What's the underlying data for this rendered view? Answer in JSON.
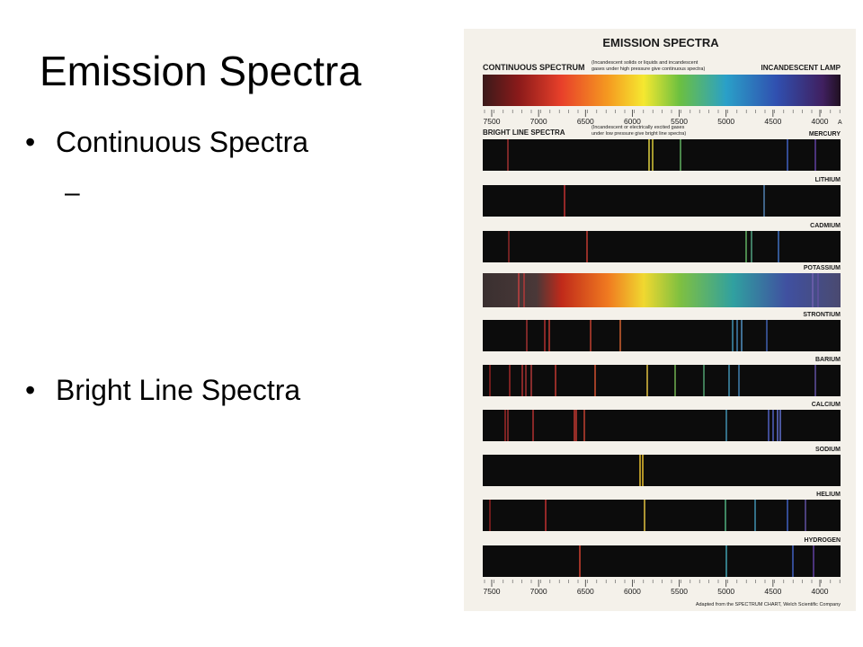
{
  "slide": {
    "title": "Emission Spectra",
    "bullets": [
      {
        "text": "Continuous Spectra",
        "sub": [
          "–"
        ]
      },
      {
        "text": "Bright Line Spectra",
        "sub": []
      }
    ]
  },
  "figure": {
    "title": "EMISSION SPECTRA",
    "continuous": {
      "label": "CONTINUOUS SPECTRUM",
      "note": [
        "(Incandescent solids or liquids and incandescent",
        "gases under high pressure give continuous spectra)"
      ],
      "source": "INCANDESCENT LAMP"
    },
    "bright": {
      "label": "BRIGHT LINE SPECTRA",
      "note": [
        "(Incandescent or electrically excited gases",
        "under low pressure give bright line spectra)"
      ]
    },
    "scale": {
      "ticks": [
        7500,
        7000,
        6500,
        6000,
        5500,
        5000,
        4500,
        4000
      ],
      "unit": "A"
    },
    "bottom_scale": {
      "ticks": [
        7500,
        7000,
        6500,
        6000,
        5500,
        5000,
        4500,
        4000
      ]
    },
    "elements": [
      "MERCURY",
      "LITHIUM",
      "CADMIUM",
      "POTASSIUM",
      "STRONTIUM",
      "BARIUM",
      "CALCIUM",
      "SODIUM",
      "HELIUM",
      "HYDROGEN"
    ],
    "credit": "Adapted from the SPECTRUM CHART, Welch Scientific Company"
  }
}
